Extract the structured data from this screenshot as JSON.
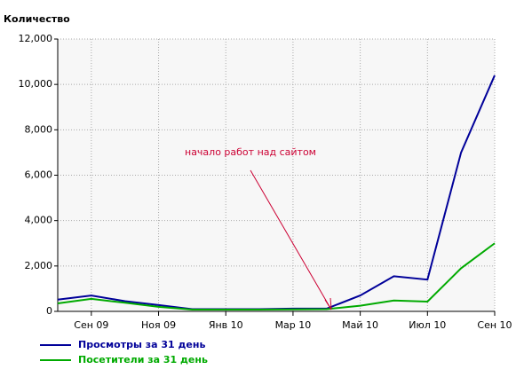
{
  "chart_data": {
    "type": "line",
    "y_label": "Количество",
    "categories": [
      null,
      "Сен 09",
      null,
      "Ноя 09",
      null,
      "Янв 10",
      null,
      "Мар 10",
      null,
      "Май 10",
      null,
      "Июл 10",
      null,
      "Сен 10"
    ],
    "series": [
      {
        "name": "Просмотры за 31 день",
        "color": "#000099",
        "values": [
          520,
          700,
          450,
          280,
          100,
          100,
          100,
          120,
          120,
          700,
          1550,
          1400,
          7000,
          10400
        ]
      },
      {
        "name": "Посетители за 31 день",
        "color": "#00aa00",
        "values": [
          350,
          550,
          380,
          200,
          80,
          80,
          80,
          90,
          100,
          250,
          480,
          430,
          1900,
          3000
        ]
      }
    ],
    "ylim": [
      0,
      12000
    ],
    "yticks": [
      0,
      {
        "value": 2000,
        "label": "2,000"
      },
      {
        "value": 4000,
        "label": "4,000"
      },
      {
        "value": 6000,
        "label": "6,000"
      },
      {
        "value": 8000,
        "label": "8,000"
      },
      {
        "value": 10000,
        "label": "10,000"
      },
      {
        "value": 12000,
        "label": "12,000"
      }
    ],
    "grid": true,
    "annotation": {
      "text": "начало работ над сайтом",
      "color": "#cc0033"
    }
  }
}
